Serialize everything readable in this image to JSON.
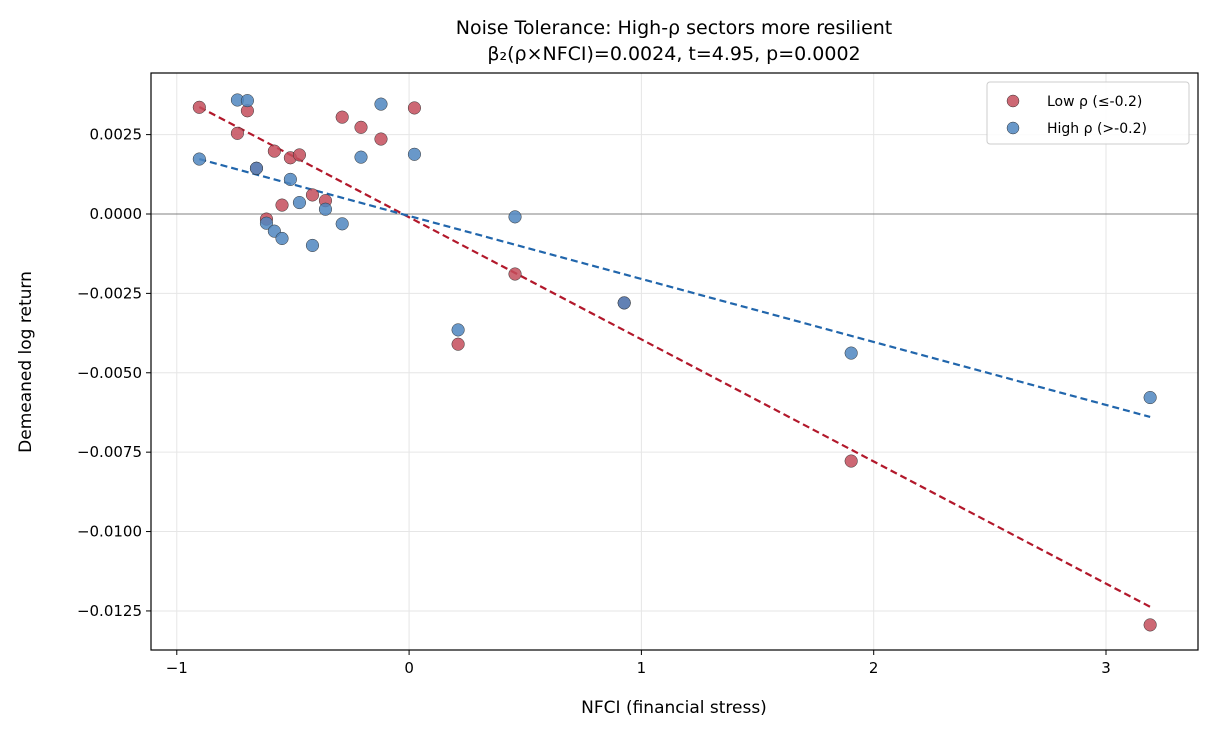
{
  "chart_data": {
    "type": "scatter",
    "title": "Noise Tolerance: High-ρ sectors more resilient",
    "subtitle": "β₂(ρ×NFCI)=0.0024, t=4.95, p=0.0002",
    "xlabel": "NFCI (financial stress)",
    "ylabel": "Demeaned log return",
    "xlim": [
      -1.111,
      3.396
    ],
    "ylim": [
      -0.01373,
      0.00444
    ],
    "x_ticks": [
      -1,
      0,
      1,
      2,
      3
    ],
    "x_tick_labels": [
      "−1",
      "0",
      "1",
      "2",
      "3"
    ],
    "y_ticks": [
      0.0025,
      0,
      -0.0025,
      -0.005,
      -0.0075,
      -0.01,
      -0.0125
    ],
    "y_tick_labels": [
      "0.0025",
      "0.0000",
      "−0.0025",
      "−0.0050",
      "−0.0075",
      "−0.0100",
      "−0.0125"
    ],
    "grid": true,
    "zero_line": true,
    "legend_position": "top-right",
    "x": [
      -0.903,
      -0.739,
      -0.696,
      -0.657,
      -0.614,
      -0.58,
      -0.547,
      -0.511,
      -0.472,
      -0.416,
      -0.36,
      -0.288,
      -0.207,
      -0.121,
      0.023,
      0.211,
      0.456,
      0.926,
      1.903,
      3.19
    ],
    "series": [
      {
        "name": "Low ρ (≤-0.2)",
        "color": "#c44e5c",
        "line_color": "#b2182b",
        "values": [
          0.00336,
          0.00254,
          0.00325,
          0.00144,
          -0.00016,
          0.00198,
          0.00028,
          0.00177,
          0.00186,
          0.0006,
          0.00042,
          0.00305,
          0.00273,
          0.00236,
          0.00334,
          -0.0041,
          -0.00189,
          -0.0028,
          -0.00778,
          -0.01294
        ],
        "trendline": {
          "x": [
            -0.903,
            3.19
          ],
          "y": [
            0.00337,
            -0.01237
          ]
        }
      },
      {
        "name": "High ρ (>-0.2)",
        "color": "#4f86c0",
        "line_color": "#2166ac",
        "values": [
          0.00173,
          0.00359,
          0.00357,
          0.00144,
          -0.00029,
          -0.00054,
          -0.00077,
          0.00109,
          0.00036,
          -0.00099,
          0.00015,
          -0.00031,
          0.00179,
          0.00346,
          0.00188,
          -0.00365,
          -9e-05,
          -0.0028,
          -0.00438,
          -0.00578
        ],
        "trendline": {
          "x": [
            -0.903,
            3.19
          ],
          "y": [
            0.00173,
            -0.00639
          ]
        }
      }
    ]
  }
}
